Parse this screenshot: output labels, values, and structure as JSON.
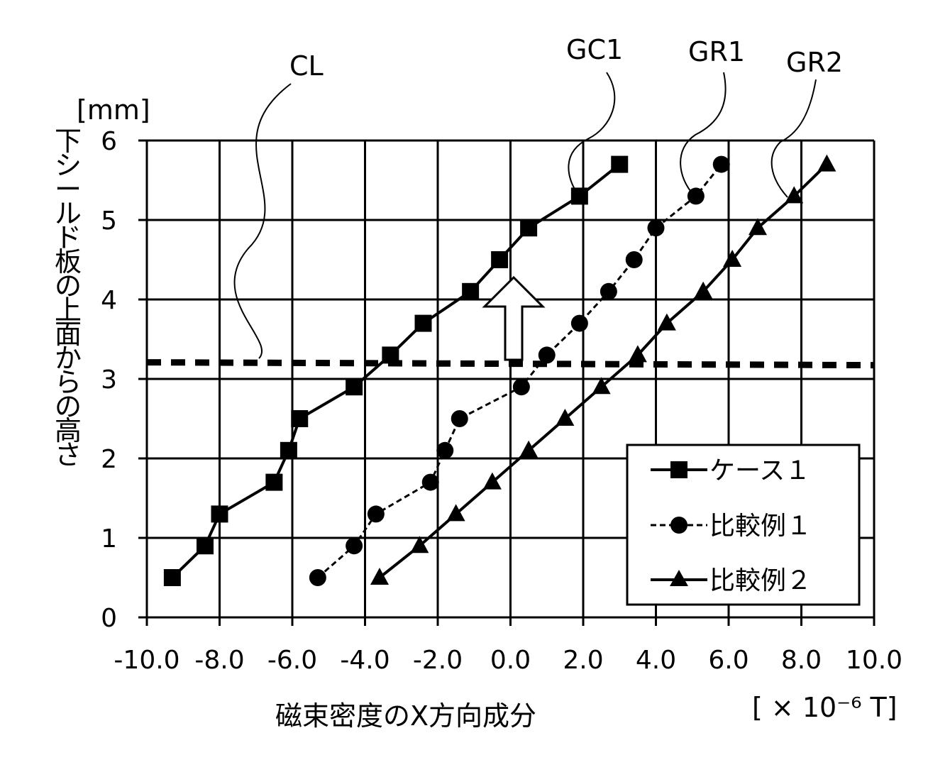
{
  "chart_data": {
    "type": "line",
    "x_axis": {
      "label": "磁束密度のX方向成分",
      "unit": "[ × 10⁻⁶ T]",
      "range": [
        -10.0,
        10.0
      ],
      "tick_labels": [
        "-10.0",
        "-8.0",
        "-6.0",
        "-4.0",
        "-2.0",
        "0.0",
        "2.0",
        "4.0",
        "6.0",
        "8.0",
        "10.0"
      ]
    },
    "y_axis": {
      "label": "下シールド板の上面からの高さ",
      "unit": "[mm]",
      "range": [
        0,
        6
      ],
      "tick_labels": [
        "0",
        "1",
        "2",
        "3",
        "4",
        "5",
        "6"
      ]
    },
    "grid": true,
    "legend_position": "bottom-right",
    "series": [
      {
        "name": "ケース１",
        "marker": "square",
        "style": "solid",
        "callout": "GC1",
        "points": [
          [
            -9.3,
            0.5
          ],
          [
            -8.4,
            0.9
          ],
          [
            -8.0,
            1.3
          ],
          [
            -6.5,
            1.7
          ],
          [
            -6.1,
            2.1
          ],
          [
            -5.8,
            2.5
          ],
          [
            -4.3,
            2.9
          ],
          [
            -3.3,
            3.3
          ],
          [
            -2.4,
            3.7
          ],
          [
            -1.1,
            4.1
          ],
          [
            -0.3,
            4.5
          ],
          [
            0.5,
            4.9
          ],
          [
            1.9,
            5.3
          ],
          [
            3.0,
            5.7
          ]
        ]
      },
      {
        "name": "比較例１",
        "marker": "circle",
        "style": "dashed",
        "callout": "GR1",
        "points": [
          [
            -5.3,
            0.5
          ],
          [
            -4.3,
            0.9
          ],
          [
            -3.7,
            1.3
          ],
          [
            -2.2,
            1.7
          ],
          [
            -1.8,
            2.1
          ],
          [
            -1.4,
            2.5
          ],
          [
            0.3,
            2.9
          ],
          [
            1.0,
            3.3
          ],
          [
            1.9,
            3.7
          ],
          [
            2.7,
            4.1
          ],
          [
            3.4,
            4.5
          ],
          [
            4.0,
            4.9
          ],
          [
            5.1,
            5.3
          ],
          [
            5.8,
            5.7
          ]
        ]
      },
      {
        "name": "比較例２",
        "marker": "triangle",
        "style": "solid",
        "callout": "GR2",
        "points": [
          [
            -3.6,
            0.5
          ],
          [
            -2.5,
            0.9
          ],
          [
            -1.5,
            1.3
          ],
          [
            -0.5,
            1.7
          ],
          [
            0.5,
            2.1
          ],
          [
            1.5,
            2.5
          ],
          [
            2.5,
            2.9
          ],
          [
            3.5,
            3.3
          ],
          [
            4.3,
            3.7
          ],
          [
            5.3,
            4.1
          ],
          [
            6.1,
            4.5
          ],
          [
            6.8,
            4.9
          ],
          [
            7.8,
            5.3
          ],
          [
            8.7,
            5.7
          ]
        ]
      }
    ],
    "reference_line": {
      "label": "CL",
      "y": 3.2,
      "style": "dashed"
    },
    "annotations": [
      "CL",
      "GC1",
      "GR1",
      "GR2"
    ]
  }
}
